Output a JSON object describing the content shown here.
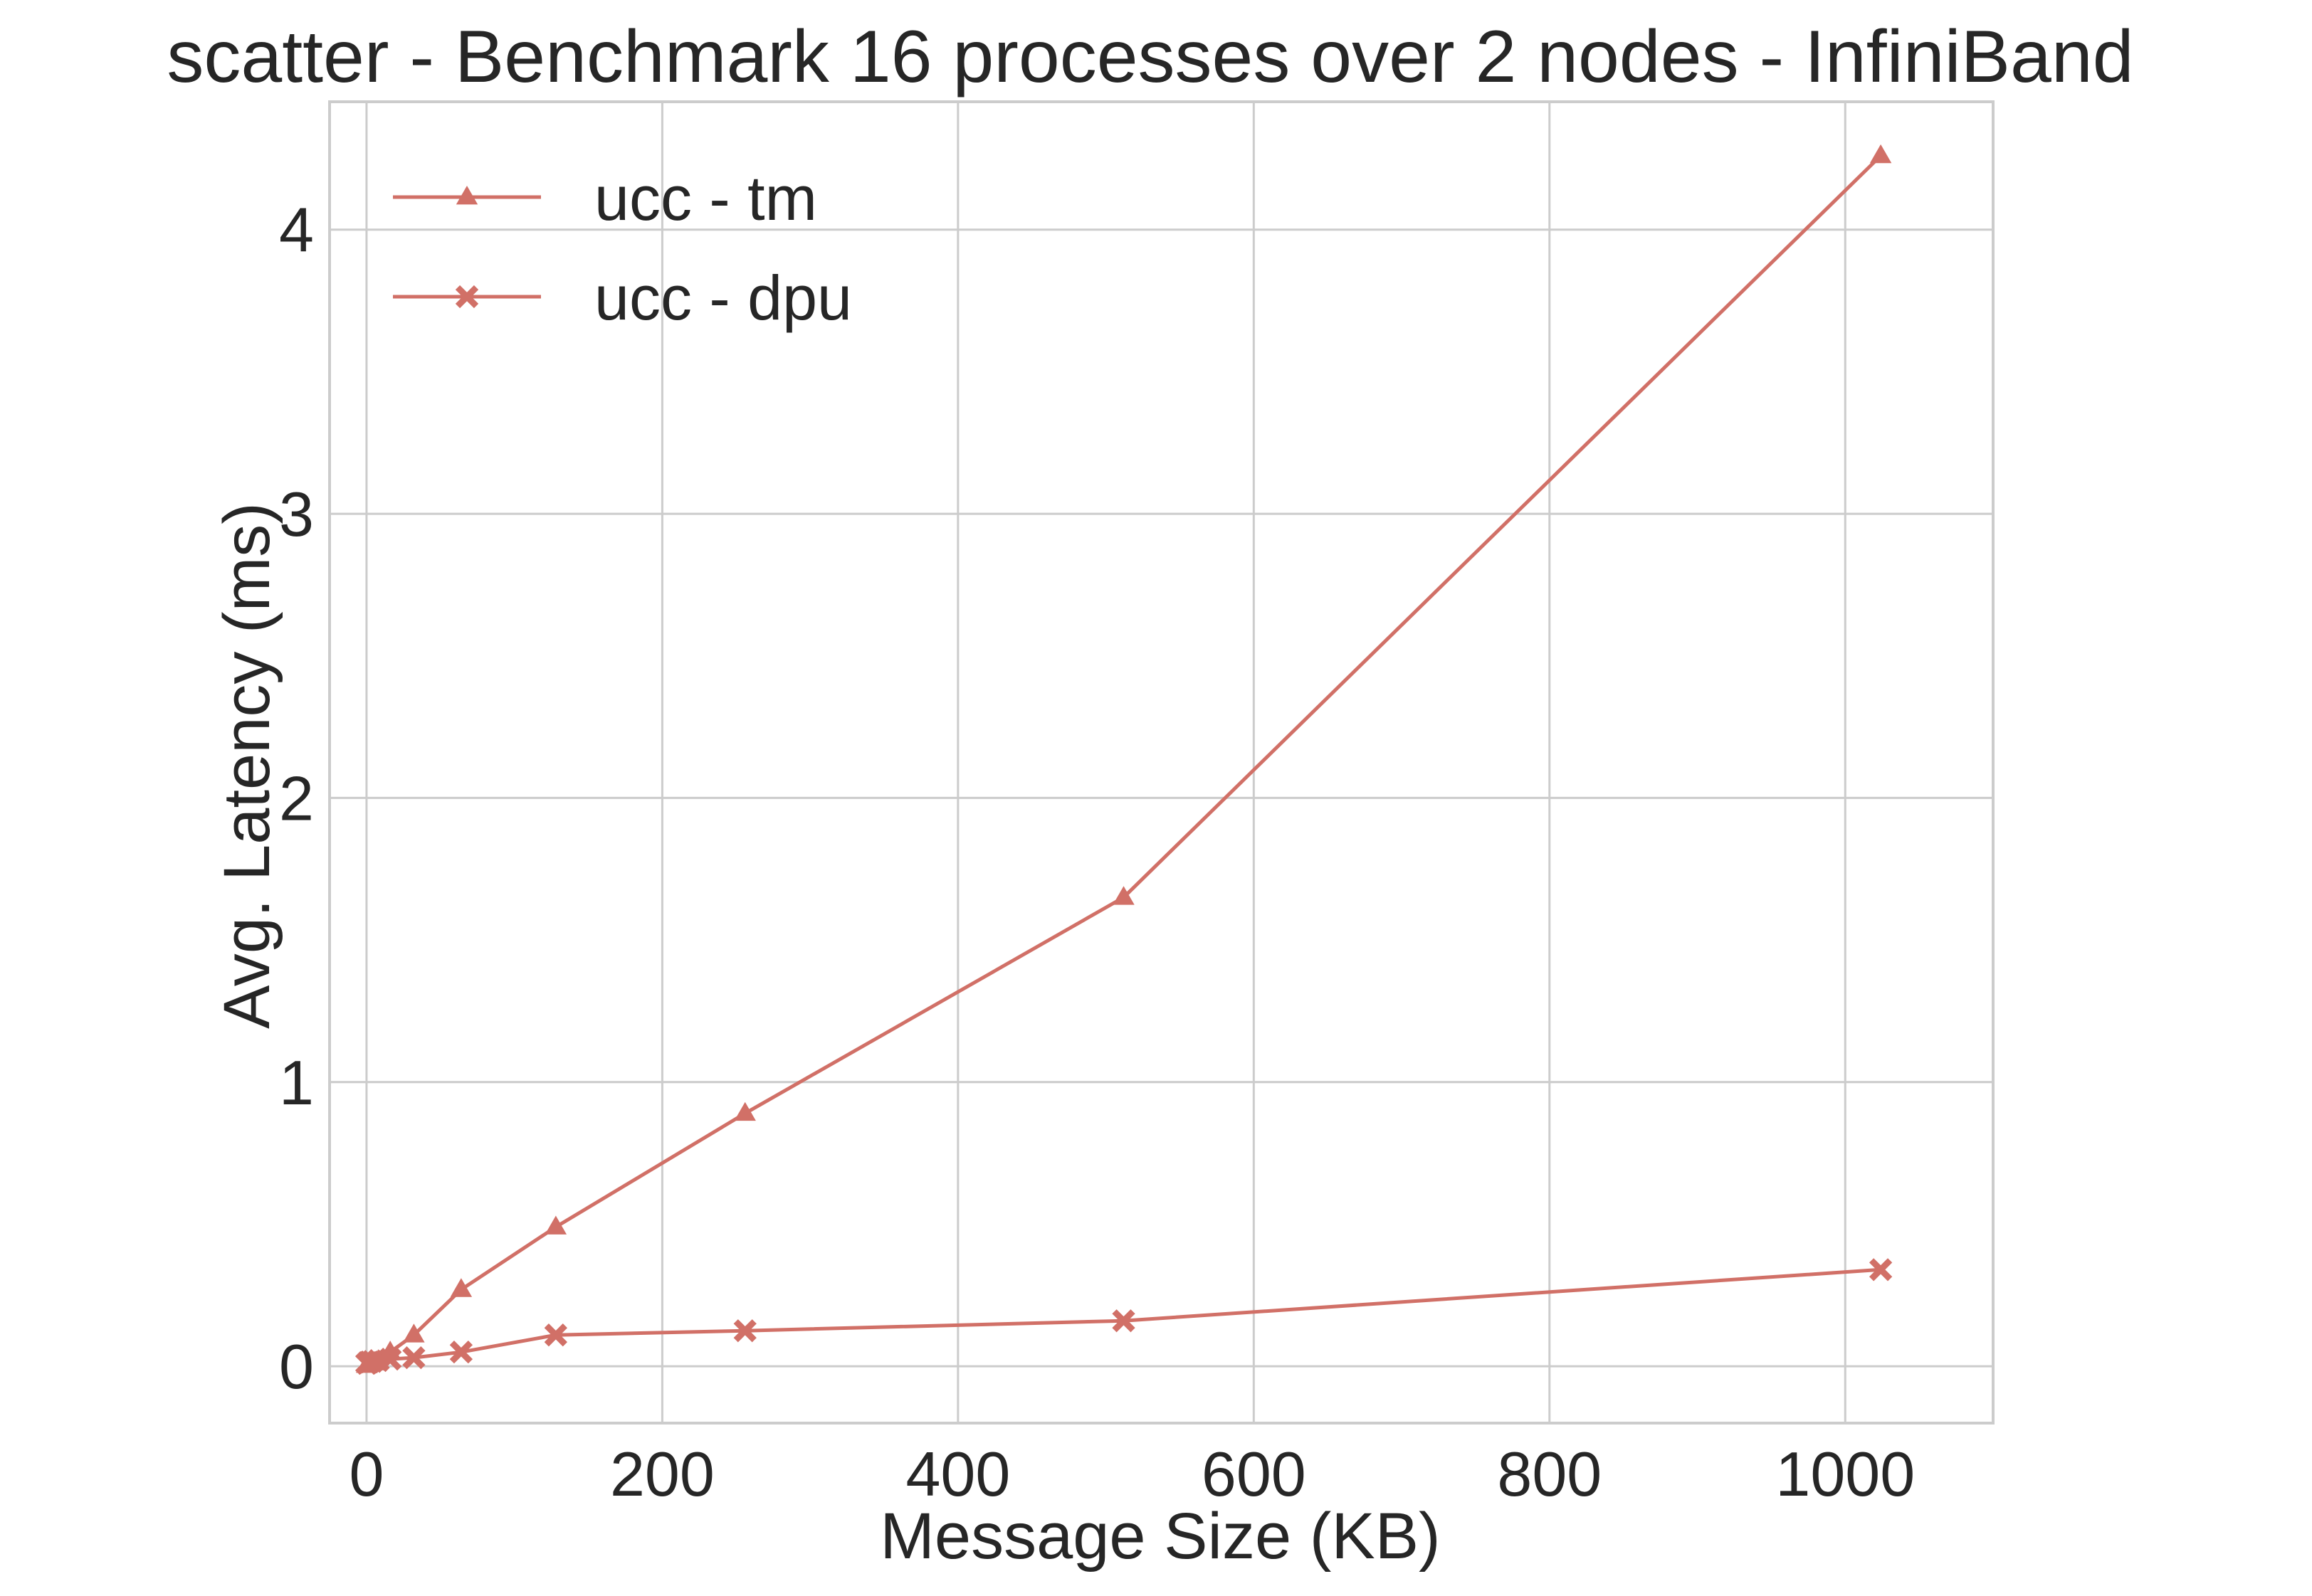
{
  "chart_data": {
    "type": "line",
    "title": "scatter - Benchmark 16 processes over 2 nodes - InfiniBand",
    "xlabel": "Message Size (KB)",
    "ylabel": "Avg. Latency (ms)",
    "xlim": [
      -25,
      1100
    ],
    "ylim": [
      -0.2,
      4.45
    ],
    "xticks": [
      0,
      200,
      400,
      600,
      800,
      1000
    ],
    "yticks": [
      0,
      1,
      2,
      3,
      4
    ],
    "grid": true,
    "legend_position": "top-left",
    "series": [
      {
        "name": "ucc - tm",
        "color": "#d17067",
        "marker": "triangle",
        "x": [
          0.125,
          0.25,
          0.5,
          1,
          2,
          4,
          8,
          16,
          32,
          64,
          128,
          256,
          512,
          1024
        ],
        "y": [
          0.003,
          0.004,
          0.005,
          0.006,
          0.008,
          0.012,
          0.02,
          0.05,
          0.11,
          0.27,
          0.49,
          0.89,
          1.65,
          4.26
        ]
      },
      {
        "name": "ucc - dpu",
        "color": "#d17067",
        "marker": "x",
        "x": [
          0.125,
          0.25,
          0.5,
          1,
          2,
          4,
          8,
          16,
          32,
          64,
          128,
          256,
          512,
          1024
        ],
        "y": [
          0.01,
          0.011,
          0.012,
          0.013,
          0.015,
          0.017,
          0.02,
          0.025,
          0.03,
          0.05,
          0.11,
          0.125,
          0.16,
          0.34
        ]
      }
    ]
  }
}
